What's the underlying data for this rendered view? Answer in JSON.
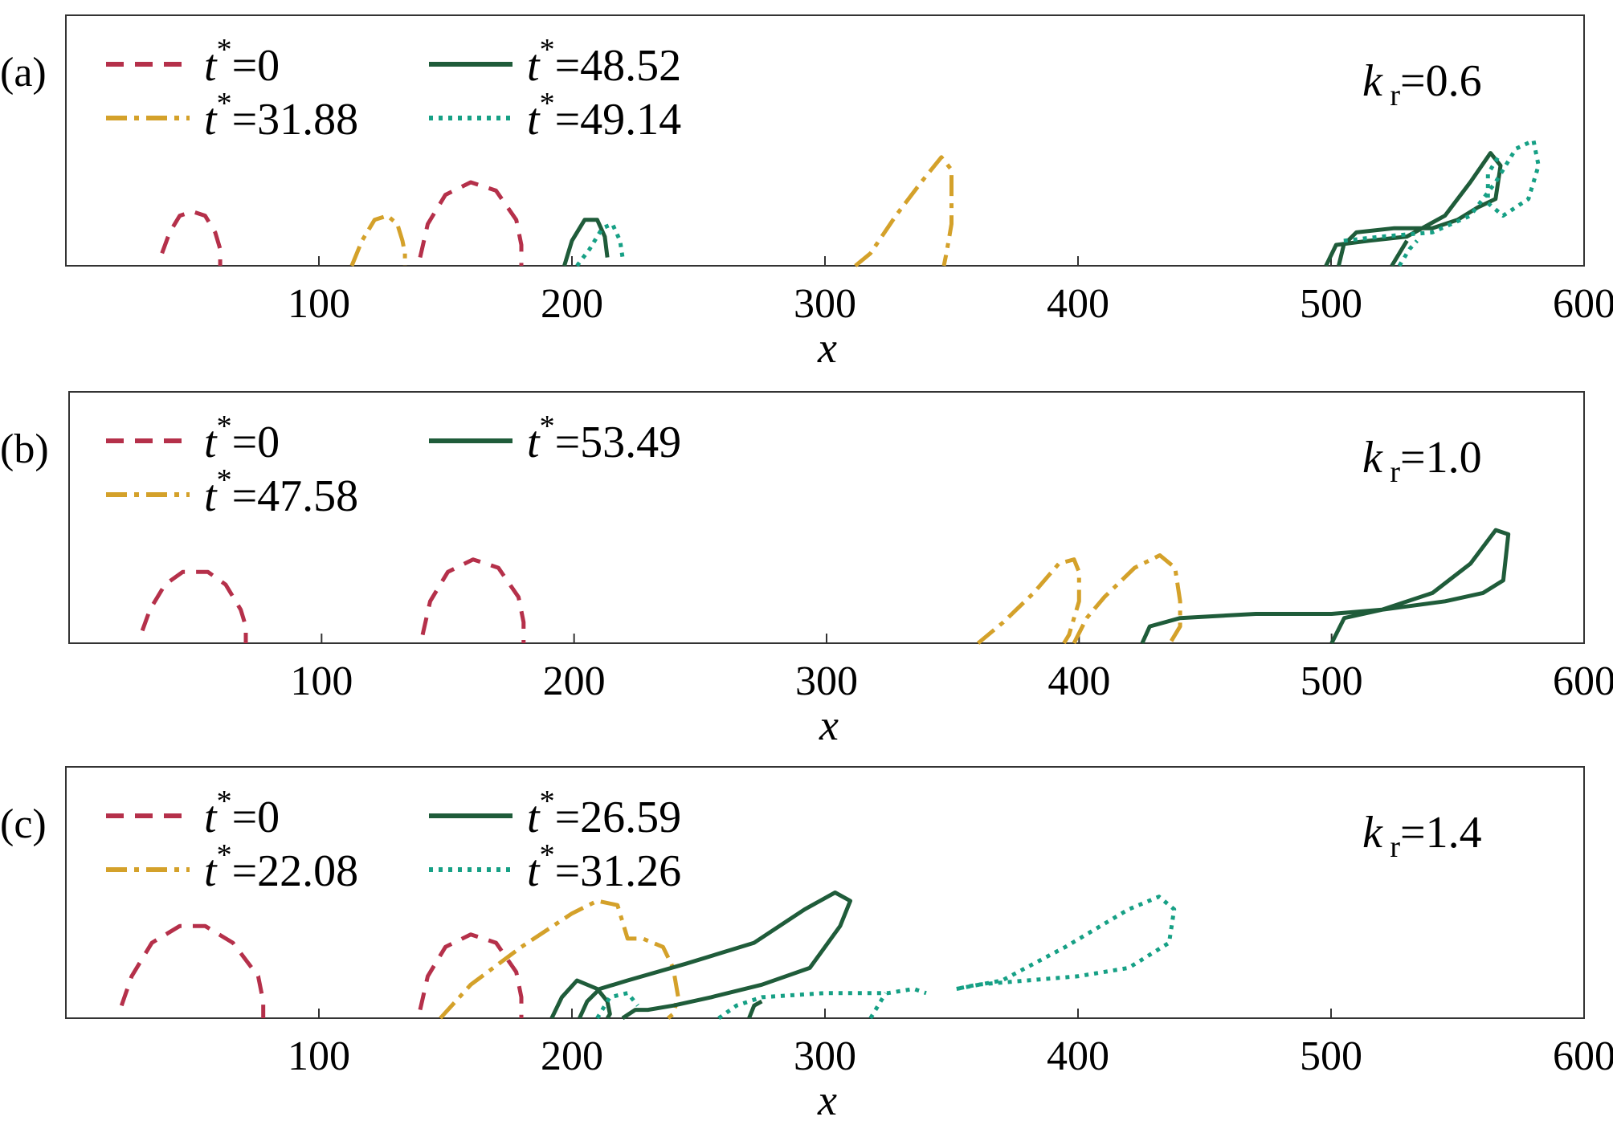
{
  "chart_data": [
    {
      "type": "line",
      "panel_label": "(a)",
      "annotation": {
        "symbol": "k",
        "subscript": "r",
        "value": "=0.6"
      },
      "xlabel": "x",
      "xlim": [
        0,
        600
      ],
      "ylim": [
        0,
        60
      ],
      "xticks": [
        100,
        200,
        300,
        400,
        500,
        600
      ],
      "legend": {
        "placement": "top-left",
        "columns": 2
      },
      "series": [
        {
          "name": "t*=0",
          "value_label": "=0",
          "color": "#b5304a",
          "style": "dashed",
          "x": [
            38,
            41,
            45,
            50,
            55,
            59,
            61,
            61,
            null,
            140,
            143,
            150,
            160,
            170,
            178,
            180,
            180
          ],
          "y": [
            3,
            8,
            12,
            13,
            12,
            8,
            4,
            0,
            null,
            2,
            10,
            17,
            20,
            18,
            11,
            5,
            0
          ]
        },
        {
          "name": "t*=31.88",
          "value_label": "=31.88",
          "color": "#d4a12a",
          "style": "dashdot",
          "x": [
            113,
            117,
            122,
            127,
            131,
            133,
            134,
            134,
            null,
            312,
            318,
            328,
            338,
            346,
            350,
            350,
            348,
            347,
            347
          ],
          "y": [
            0,
            6,
            11,
            12,
            10,
            6,
            3,
            0,
            null,
            0,
            3,
            12,
            20,
            26,
            23,
            10,
            3,
            0,
            0
          ]
        },
        {
          "name": "t*=48.52",
          "value_label": "=48.52",
          "color": "#1f5c3a",
          "style": "solid",
          "x": [
            197,
            200,
            205,
            210,
            213,
            214,
            null,
            498,
            502,
            515,
            530,
            545,
            555,
            563,
            567,
            565,
            558,
            550,
            540,
            525,
            510,
            505,
            503,
            null,
            524,
            528,
            530
          ],
          "y": [
            0,
            6,
            11,
            11,
            7,
            2,
            null,
            0,
            5,
            6,
            7,
            12,
            20,
            27,
            24,
            16,
            14,
            11,
            9,
            9,
            8,
            5,
            0,
            null,
            0,
            4,
            6
          ]
        },
        {
          "name": "t*=49.14",
          "value_label": "=49.14",
          "color": "#16a085",
          "style": "dotted",
          "x": [
            202,
            207,
            212,
            216,
            219,
            220,
            null,
            505,
            520,
            540,
            555,
            565,
            573,
            580,
            582,
            578,
            568,
            562,
            562,
            567,
            null,
            527,
            531,
            534
          ],
          "y": [
            0,
            4,
            9,
            10,
            6,
            2,
            null,
            6,
            7,
            8,
            12,
            20,
            28,
            30,
            24,
            16,
            12,
            15,
            22,
            27,
            null,
            0,
            4,
            6
          ]
        }
      ]
    },
    {
      "type": "line",
      "panel_label": "(b)",
      "annotation": {
        "symbol": "k",
        "subscript": "r",
        "value": "=1.0"
      },
      "xlabel": "x",
      "xlim": [
        0,
        600
      ],
      "ylim": [
        0,
        60
      ],
      "xticks": [
        100,
        200,
        300,
        400,
        500,
        600
      ],
      "legend": {
        "placement": "top-left",
        "columns": 2
      },
      "series": [
        {
          "name": "t*=0",
          "value_label": "=0",
          "color": "#b5304a",
          "style": "dashed",
          "x": [
            29,
            32,
            38,
            45,
            50,
            55,
            62,
            68,
            70,
            70,
            null,
            140,
            143,
            150,
            160,
            170,
            178,
            180,
            180
          ],
          "y": [
            3,
            8,
            14,
            17,
            17,
            17,
            14,
            8,
            4,
            0,
            null,
            2,
            10,
            17,
            20,
            18,
            11,
            5,
            0
          ]
        },
        {
          "name": "t*=47.58",
          "value_label": "=47.58",
          "color": "#d4a12a",
          "style": "dashdot",
          "x": [
            360,
            370,
            382,
            392,
            398,
            400,
            400,
            396,
            394,
            null,
            398,
            403,
            410,
            422,
            432,
            438,
            440,
            440,
            436,
            435
          ],
          "y": [
            0,
            5,
            12,
            19,
            20,
            17,
            10,
            2,
            0,
            null,
            0,
            6,
            11,
            18,
            21,
            18,
            10,
            4,
            0,
            0
          ]
        },
        {
          "name": "t*=53.49",
          "value_label": "=53.49",
          "color": "#1f5c3a",
          "style": "solid",
          "x": [
            425,
            428,
            440,
            470,
            500,
            520,
            540,
            555,
            565,
            570,
            568,
            560,
            545,
            520,
            505,
            500
          ],
          "y": [
            0,
            4,
            6,
            7,
            7,
            8,
            12,
            19,
            27,
            26,
            15,
            12,
            10,
            8,
            6,
            0
          ]
        }
      ]
    },
    {
      "type": "line",
      "panel_label": "(c)",
      "annotation": {
        "symbol": "k",
        "subscript": "r",
        "value": "=1.4"
      },
      "xlabel": "x",
      "xlim": [
        0,
        600
      ],
      "ylim": [
        0,
        60
      ],
      "xticks": [
        100,
        200,
        300,
        400,
        500,
        600
      ],
      "legend": {
        "placement": "top-left",
        "columns": 2
      },
      "series": [
        {
          "name": "t*=0",
          "value_label": "=0",
          "color": "#b5304a",
          "style": "dashed",
          "x": [
            22,
            26,
            34,
            45,
            50,
            55,
            66,
            76,
            78,
            78,
            null,
            140,
            143,
            150,
            160,
            170,
            178,
            180,
            180
          ],
          "y": [
            3,
            10,
            18,
            22,
            22,
            22,
            18,
            10,
            4,
            0,
            null,
            2,
            10,
            17,
            20,
            18,
            11,
            5,
            0
          ]
        },
        {
          "name": "t*=22.08",
          "value_label": "=22.08",
          "color": "#d4a12a",
          "style": "dashdot",
          "x": [
            148,
            160,
            180,
            200,
            210,
            218,
            222,
            228,
            236,
            240,
            242,
            240,
            238
          ],
          "y": [
            0,
            8,
            17,
            25,
            28,
            27,
            19,
            19,
            17,
            12,
            5,
            1,
            0
          ]
        },
        {
          "name": "t*=26.59",
          "value_label": "=26.59",
          "color": "#1f5c3a",
          "style": "solid",
          "x": [
            192,
            196,
            202,
            210,
            214,
            215,
            214,
            null,
            203,
            206,
            211,
            222,
            245,
            272,
            292,
            304,
            310,
            306,
            294,
            275,
            255,
            240,
            230,
            225,
            220,
            null,
            270,
            272,
            275
          ],
          "y": [
            0,
            5,
            9,
            7,
            4,
            1,
            0,
            null,
            0,
            4,
            7,
            9,
            13,
            18,
            26,
            30,
            28,
            22,
            12,
            8,
            5,
            3,
            2,
            2,
            0,
            null,
            0,
            3,
            4
          ]
        },
        {
          "name": "t*=31.26",
          "value_label": "=31.26",
          "color": "#16a085",
          "style": "dotted",
          "x": [
            210,
            215,
            222,
            226,
            null,
            258,
            265,
            275,
            300,
            325,
            335,
            340,
            null,
            352,
            370,
            395,
            420,
            432,
            438,
            436,
            420,
            400,
            380,
            360,
            352,
            null,
            318,
            322,
            324
          ],
          "y": [
            0,
            5,
            6,
            3,
            null,
            0,
            3,
            5,
            6,
            6,
            7,
            6,
            null,
            7,
            9,
            17,
            26,
            29,
            26,
            18,
            12,
            10,
            9,
            8,
            7,
            null,
            0,
            4,
            6
          ]
        }
      ]
    }
  ]
}
